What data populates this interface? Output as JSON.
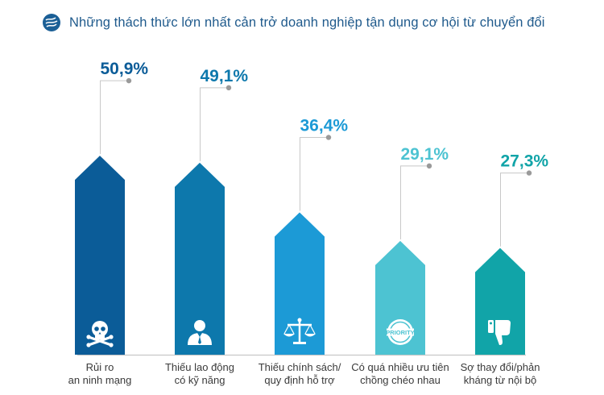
{
  "header": {
    "title": "Những thách thức lớn nhất cản trở doanh nghiệp tận dụng cơ hội từ chuyển đổi",
    "icon": "globe-icon",
    "icon_color": "#1b5f96"
  },
  "chart_data": {
    "type": "bar",
    "title": "Những thách thức lớn nhất cản trở doanh nghiệp tận dụng cơ hội từ chuyển đổi",
    "unit": "%",
    "ylim": [
      0,
      55
    ],
    "grid": false,
    "legend": "none",
    "categories": [
      [
        "Rủi ro",
        "an ninh mạng"
      ],
      [
        "Thiếu lao động",
        "có kỹ năng"
      ],
      [
        "Thiếu chính sách/",
        "quy định hỗ trợ"
      ],
      [
        "Có quá nhiều ưu tiên",
        "chồng chéo nhau"
      ],
      [
        "Sợ thay đổi/phản",
        "kháng từ nội bộ"
      ]
    ],
    "values": [
      50.9,
      49.1,
      36.4,
      29.1,
      27.3
    ],
    "value_labels": [
      "50,9%",
      "49,1%",
      "36,4%",
      "29,1%",
      "27,3%"
    ],
    "bar_colors": [
      "#0b5c98",
      "#0d78ac",
      "#1c9ad6",
      "#4dc3d2",
      "#11a4a8"
    ],
    "label_colors": [
      "#0b5c98",
      "#0d78ac",
      "#1c9ad6",
      "#4dc3d2",
      "#11a4a8"
    ],
    "icons": [
      "skull-icon",
      "person-icon",
      "scales-icon",
      "priority-badge-icon",
      "thumbs-down-icon"
    ],
    "icon_texts": [
      "",
      "",
      "",
      "PRIORITY",
      ""
    ],
    "connector_color": "#c8c8c8",
    "dot_color": "#9a9a9a",
    "baseline_color": "#c8c8c8"
  }
}
